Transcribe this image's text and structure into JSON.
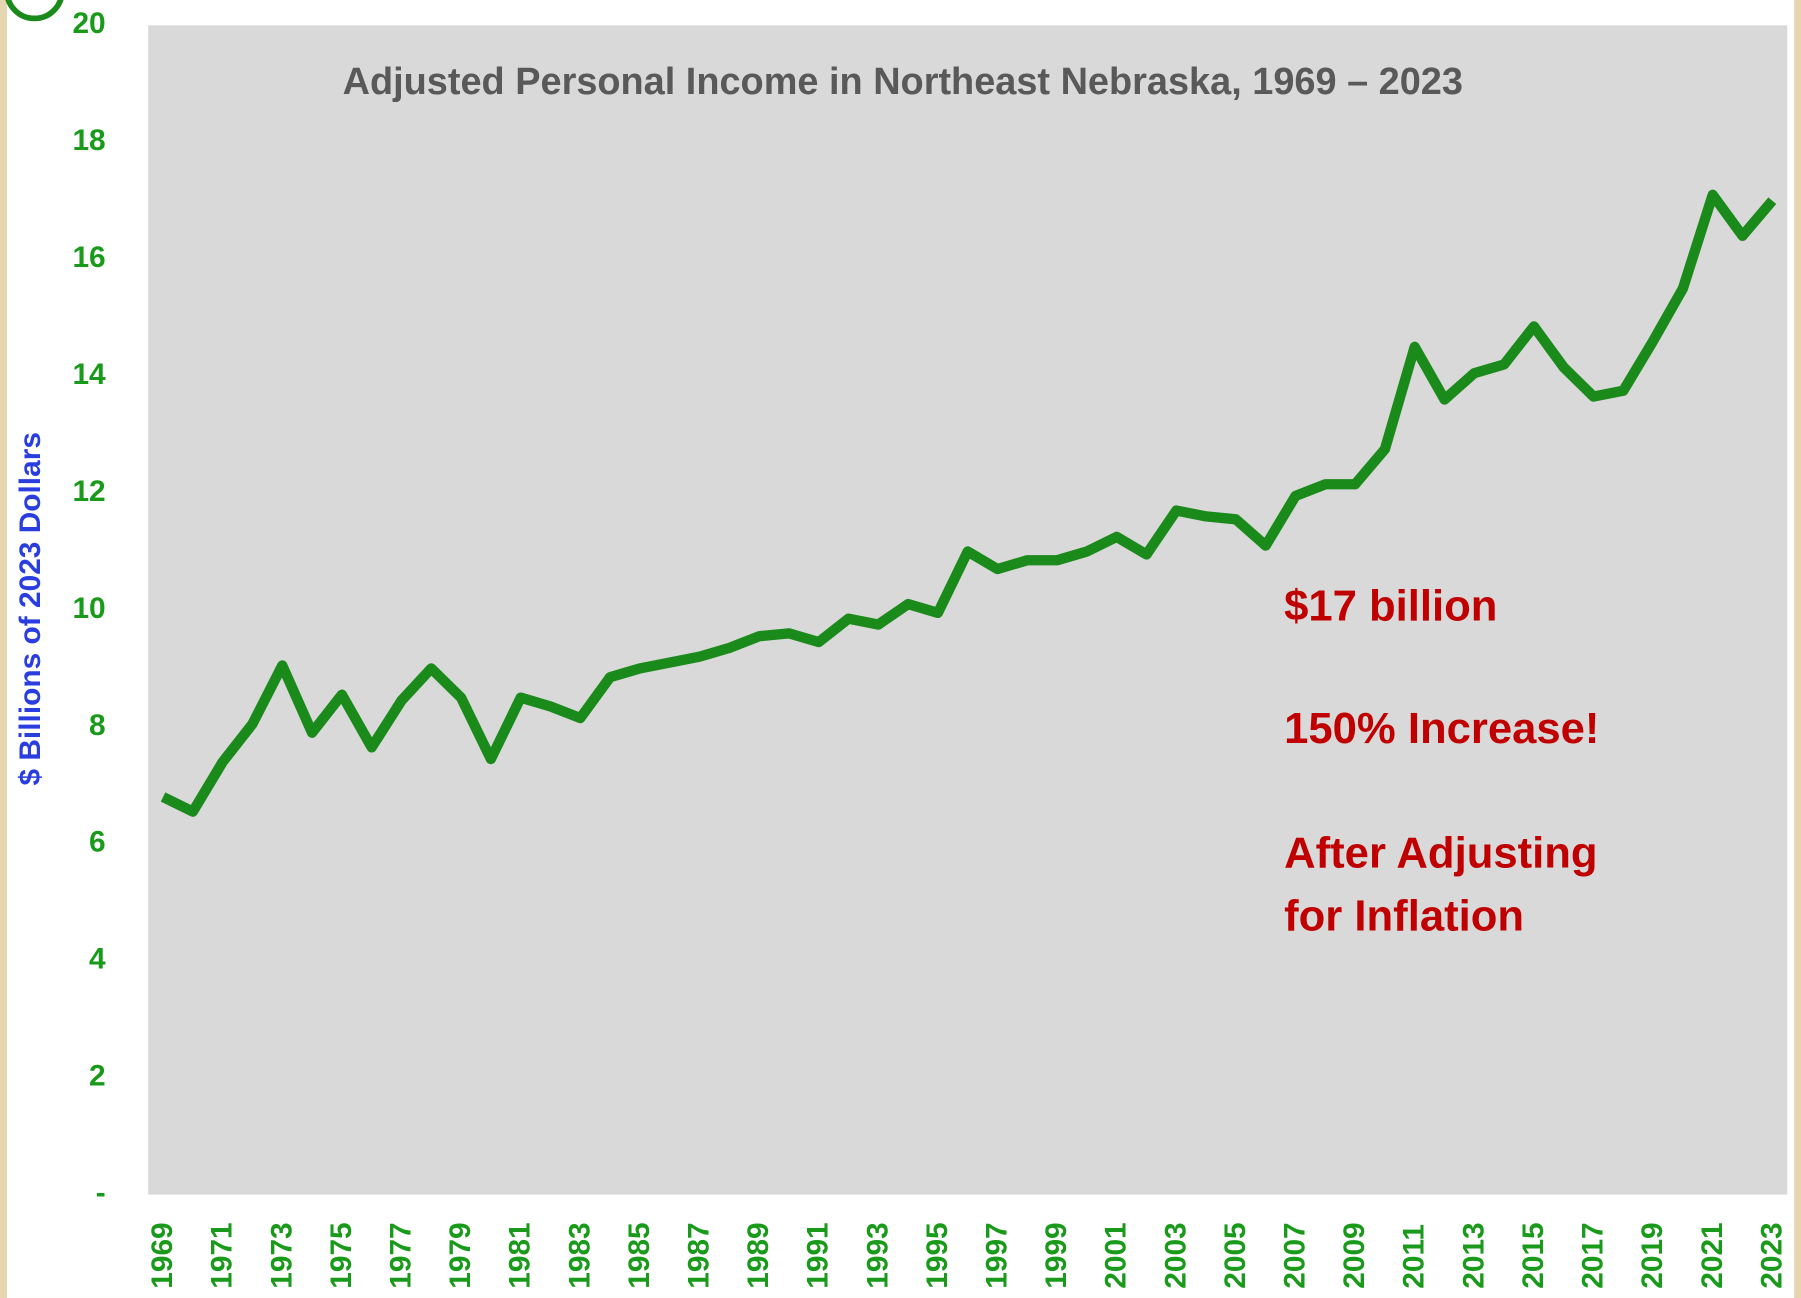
{
  "chart_data": {
    "type": "line",
    "title": "Adjusted Personal Income in Northeast Nebraska, 1969 – 2023",
    "y_label": "$ Billions of 2023 Dollars",
    "annotations": [
      "$17 billion",
      "150% Increase!",
      "After Adjusting",
      "for Inflation"
    ],
    "x": [
      1969,
      1970,
      1971,
      1972,
      1973,
      1974,
      1975,
      1976,
      1977,
      1978,
      1979,
      1980,
      1981,
      1982,
      1983,
      1984,
      1985,
      1986,
      1987,
      1988,
      1989,
      1990,
      1991,
      1992,
      1993,
      1994,
      1995,
      1996,
      1997,
      1998,
      1999,
      2000,
      2001,
      2002,
      2003,
      2004,
      2005,
      2006,
      2007,
      2008,
      2009,
      2010,
      2011,
      2012,
      2013,
      2014,
      2015,
      2016,
      2017,
      2018,
      2019,
      2020,
      2021,
      2022,
      2023
    ],
    "series": [
      {
        "name": "Adjusted Personal Income",
        "color": "#1a8a1a",
        "values": [
          6.8,
          6.55,
          7.4,
          8.05,
          9.05,
          7.9,
          8.55,
          7.65,
          8.45,
          9.0,
          8.5,
          7.45,
          8.5,
          8.35,
          8.15,
          8.85,
          9.0,
          9.1,
          9.2,
          9.35,
          9.55,
          9.6,
          9.45,
          9.85,
          9.75,
          10.1,
          9.95,
          11.0,
          10.7,
          10.85,
          10.85,
          11.0,
          11.25,
          10.95,
          11.7,
          11.6,
          11.55,
          11.1,
          11.95,
          12.15,
          12.15,
          12.75,
          14.5,
          13.6,
          14.05,
          14.2,
          14.85,
          14.15,
          13.65,
          13.75,
          14.6,
          15.5,
          17.1,
          16.4,
          17.0
        ]
      }
    ],
    "xlim": [
      1968.5,
      2023.5
    ],
    "xticks": [
      1969,
      1971,
      1973,
      1975,
      1977,
      1979,
      1981,
      1983,
      1985,
      1987,
      1989,
      1991,
      1993,
      1995,
      1997,
      1999,
      2001,
      2003,
      2005,
      2007,
      2009,
      2011,
      2013,
      2015,
      2017,
      2019,
      2021,
      2023
    ],
    "ylim": [
      0,
      20
    ],
    "yticks": [
      {
        "value": 0,
        "label": "-"
      },
      2,
      4,
      6,
      8,
      10,
      12,
      14,
      16,
      18,
      20
    ]
  }
}
